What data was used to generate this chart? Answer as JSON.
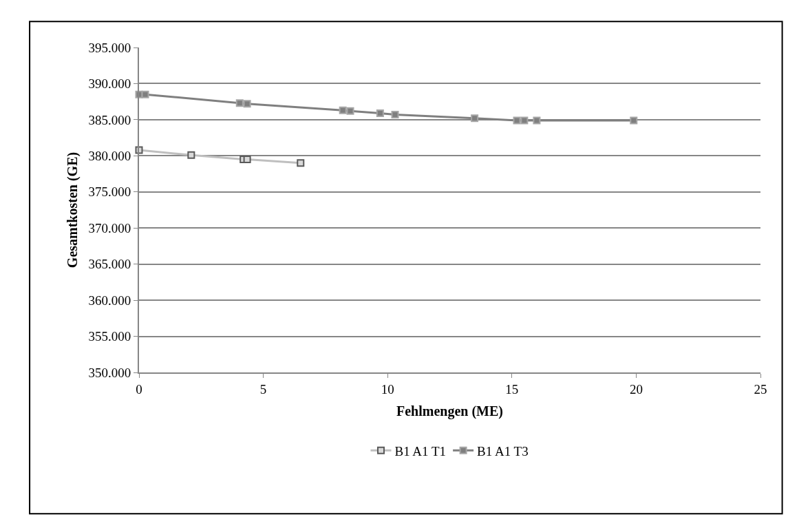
{
  "chart_data": {
    "type": "line",
    "xlabel": "Fehlmengen (ME)",
    "ylabel": "Gesamtkosten (GE)",
    "xlim": [
      0,
      25
    ],
    "xticks": [
      0,
      5,
      10,
      15,
      20,
      25
    ],
    "ylim": [
      350000,
      395000
    ],
    "yticks": [
      {
        "value": 350000,
        "label": "350.000"
      },
      {
        "value": 355000,
        "label": "355.000"
      },
      {
        "value": 360000,
        "label": "360.000"
      },
      {
        "value": 365000,
        "label": "365.000"
      },
      {
        "value": 370000,
        "label": "370.000"
      },
      {
        "value": 375000,
        "label": "375.000"
      },
      {
        "value": 380000,
        "label": "380.000"
      },
      {
        "value": 385000,
        "label": "385.000"
      },
      {
        "value": 390000,
        "label": "390.000"
      },
      {
        "value": 395000,
        "label": "395.000"
      }
    ],
    "grid": "y",
    "legend": "bottom",
    "marker": "square",
    "line_style": "solid",
    "series": [
      {
        "name": "B1 A1 T1",
        "color": "#bfbfbf",
        "x": [
          0,
          2.1,
          4.2,
          4.35,
          6.5
        ],
        "values": [
          380800,
          380100,
          379500,
          379500,
          379000
        ]
      },
      {
        "name": "B1 A1 T3",
        "color": "#7f7f7f",
        "x": [
          0,
          0.25,
          4.05,
          4.35,
          8.2,
          8.5,
          9.7,
          10.3,
          13.5,
          15.2,
          15.5,
          16.0,
          19.9
        ],
        "values": [
          388500,
          388500,
          387300,
          387200,
          386300,
          386200,
          385900,
          385700,
          385200,
          384900,
          384900,
          384900,
          384900
        ]
      }
    ]
  }
}
